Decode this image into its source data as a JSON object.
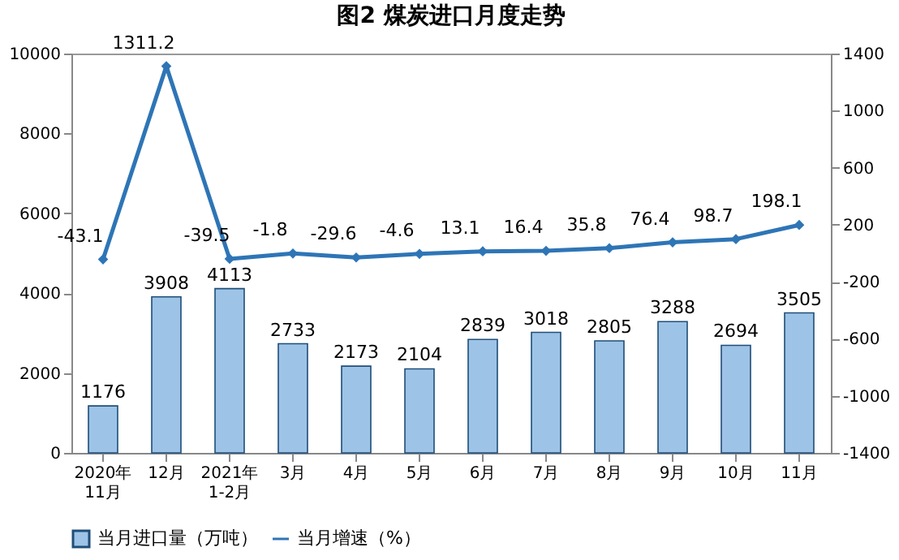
{
  "chart_data": {
    "type": "bar",
    "title": "图2  煤炭进口月度走势",
    "categories": [
      "2020年\n11月",
      "12月",
      "2021年\n1-2月",
      "3月",
      "4月",
      "5月",
      "6月",
      "7月",
      "8月",
      "9月",
      "10月",
      "11月"
    ],
    "series": [
      {
        "name": "当月进口量（万吨）",
        "color": "#9dc3e6",
        "values": [
          1176,
          3908,
          4113,
          2733,
          2173,
          2104,
          2839,
          3018,
          2805,
          3288,
          2694,
          3505
        ]
      },
      {
        "name": "当月增速（%）",
        "color": "#2e75b6",
        "type": "line",
        "axis": "y2",
        "marker": "diamond",
        "values": [
          -43.1,
          1311.2,
          -39.5,
          -1.8,
          -29.6,
          -4.6,
          13.1,
          16.4,
          35.8,
          76.4,
          98.7,
          198.1
        ]
      }
    ],
    "ylim": [
      0,
      10000
    ],
    "yticks": [
      0,
      2000,
      4000,
      6000,
      8000,
      10000
    ],
    "y2lim": [
      -1400,
      1400
    ],
    "y2ticks": [
      -1400,
      -1000,
      -600,
      -200,
      200,
      600,
      1000,
      1400
    ],
    "data_labels": true,
    "grid": false,
    "legend": "bottom"
  }
}
